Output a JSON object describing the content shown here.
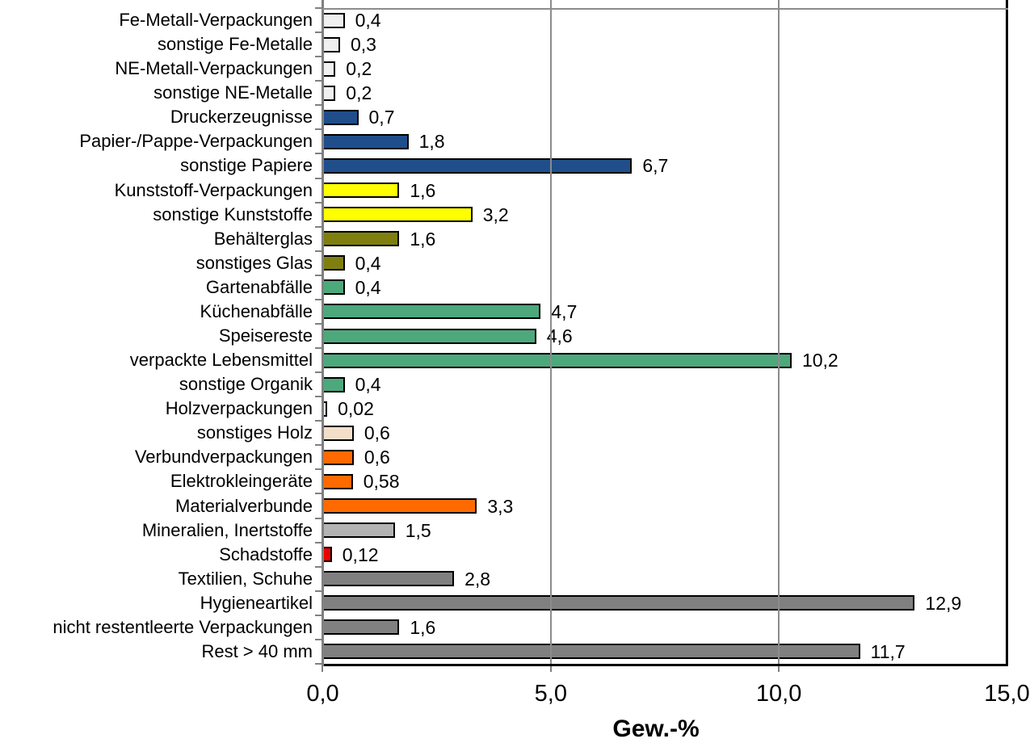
{
  "chart_data": {
    "type": "bar",
    "orientation": "horizontal",
    "title": "",
    "xlabel": "Gew.-%",
    "xlim": [
      0,
      15
    ],
    "x_ticks": [
      "0,0",
      "5,0",
      "10,0",
      "15,0"
    ],
    "x_tick_values": [
      0,
      5,
      10,
      15
    ],
    "gridline_values": [
      5,
      10
    ],
    "grid": true,
    "legend": false,
    "categories": [
      "Fe-Metall-Verpackungen",
      "sonstige Fe-Metalle",
      "NE-Metall-Verpackungen",
      "sonstige NE-Metalle",
      "Druckerzeugnisse",
      "Papier-/Pappe-Verpackungen",
      "sonstige Papiere",
      "Kunststoff-Verpackungen",
      "sonstige Kunststoffe",
      "Behälterglas",
      "sonstiges Glas",
      "Gartenabfälle",
      "Küchenabfälle",
      "Speisereste",
      "verpackte Lebensmittel",
      "sonstige Organik",
      "Holzverpackungen",
      "sonstiges Holz",
      "Verbundverpackungen",
      "Elektrokleingeräte",
      "Materialverbunde",
      "Mineralien, Inertstoffe",
      "Schadstoffe",
      "Textilien, Schuhe",
      "Hygieneartikel",
      "nicht restentleerte Verpackungen",
      "Rest > 40 mm"
    ],
    "values": [
      0.4,
      0.3,
      0.2,
      0.2,
      0.7,
      1.8,
      6.7,
      1.6,
      3.2,
      1.6,
      0.4,
      0.4,
      4.7,
      4.6,
      10.2,
      0.4,
      0.02,
      0.6,
      0.6,
      0.58,
      3.3,
      1.5,
      0.12,
      2.8,
      12.9,
      1.6,
      11.7
    ],
    "value_labels": [
      "0,4",
      "0,3",
      "0,2",
      "0,2",
      "0,7",
      "1,8",
      "6,7",
      "1,6",
      "3,2",
      "1,6",
      "0,4",
      "0,4",
      "4,7",
      "4,6",
      "10,2",
      "0,4",
      "0,02",
      "0,6",
      "0,6",
      "0,58",
      "3,3",
      "1,5",
      "0,12",
      "2,8",
      "12,9",
      "1,6",
      "11,7"
    ],
    "bar_colors": [
      "#F0F0F0",
      "#F0F0F0",
      "#F0F0F0",
      "#F0F0F0",
      "#1F4E8B",
      "#1F4E8B",
      "#1F4E8B",
      "#FFFF00",
      "#FFFF00",
      "#7F7F10",
      "#7F7F10",
      "#4DA87C",
      "#4DA87C",
      "#4DA87C",
      "#4DA87C",
      "#4DA87C",
      "#F0F0F0",
      "#F2DFC9",
      "#FF6A00",
      "#FF6A00",
      "#FF6A00",
      "#B3B3B3",
      "#EE0000",
      "#808080",
      "#808080",
      "#808080",
      "#808080"
    ],
    "colors": {
      "bar_border": "#000000",
      "axis_line": "#808080",
      "gridline": "#8C8C8C",
      "plot_border": "#000000",
      "text": "#000000",
      "background": "#FFFFFF"
    }
  }
}
